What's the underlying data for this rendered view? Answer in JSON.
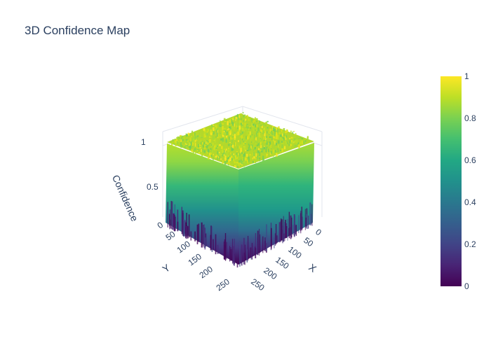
{
  "chart_data": {
    "type": "surface",
    "title": "3D Confidence Map",
    "axes": {
      "x": {
        "title": "X",
        "range": [
          0,
          255
        ],
        "ticks": [
          "0",
          "50",
          "100",
          "150",
          "200",
          "250"
        ]
      },
      "y": {
        "title": "Y",
        "range": [
          0,
          255
        ],
        "ticks": [
          "0",
          "50",
          "100",
          "150",
          "200",
          "250"
        ]
      },
      "z": {
        "title": "Confidence",
        "range": [
          0,
          1
        ],
        "ticks": [
          "0",
          "0.5",
          "1"
        ]
      }
    },
    "grid_size": [
      256,
      256
    ],
    "surface_value_range_approx": [
      0.85,
      1.0
    ],
    "colorscale": "Viridis",
    "colorbar": {
      "range": [
        0,
        1
      ],
      "ticks": [
        "0",
        "0.2",
        "0.4",
        "0.6",
        "0.8",
        "1"
      ]
    }
  }
}
